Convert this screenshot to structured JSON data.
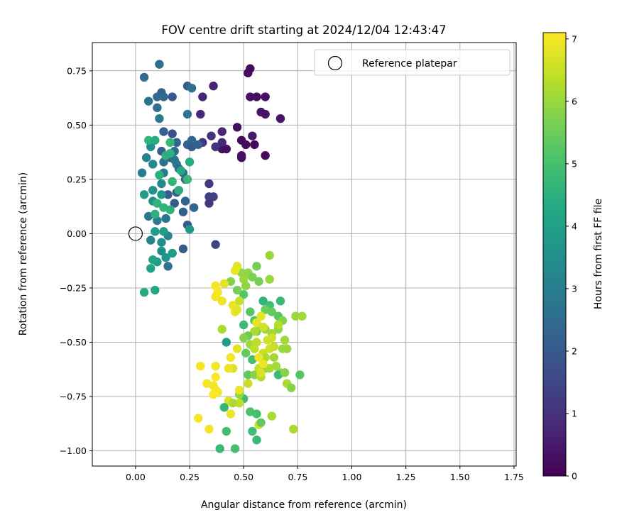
{
  "chart_data": {
    "type": "scatter",
    "title": "FOV centre drift starting at 2024/12/04 12:43:47",
    "xlabel": "Angular distance from reference (arcmin)",
    "ylabel": "Rotation from reference (arcmin)",
    "xlim": [
      -0.2,
      1.76
    ],
    "ylim": [
      -1.07,
      0.88
    ],
    "x_ticks": [
      "0.00",
      "0.25",
      "0.50",
      "0.75",
      "1.00",
      "1.25",
      "1.50",
      "1.75"
    ],
    "y_ticks": [
      "0.75",
      "0.50",
      "0.25",
      "0.00",
      "−0.25",
      "−0.50",
      "−0.75",
      "−1.00"
    ],
    "x_tick_values": [
      0,
      0.25,
      0.5,
      0.75,
      1.0,
      1.25,
      1.5,
      1.75
    ],
    "y_tick_values": [
      0.75,
      0.5,
      0.25,
      0,
      -0.25,
      -0.5,
      -0.75,
      -1.0
    ],
    "grid": true,
    "colormap": "viridis",
    "colorbar": {
      "label": "Hours from first FF file",
      "range": [
        0,
        7.1
      ],
      "ticks": [
        "0",
        "1",
        "2",
        "3",
        "4",
        "5",
        "6",
        "7"
      ],
      "tick_values": [
        0,
        1,
        2,
        3,
        4,
        5,
        6,
        7
      ]
    },
    "legend": {
      "position": "top-right",
      "label": "Reference platepar"
    },
    "reference_point": {
      "x": 0,
      "y": 0
    },
    "series": [
      {
        "points": [
          [
            0.53,
            0.76,
            0.2
          ],
          [
            0.52,
            0.74,
            0.2
          ],
          [
            0.53,
            0.63,
            0.3
          ],
          [
            0.6,
            0.63,
            0.3
          ],
          [
            0.58,
            0.56,
            0.4
          ],
          [
            0.6,
            0.55,
            0.4
          ],
          [
            0.67,
            0.53,
            0.4
          ],
          [
            0.54,
            0.45,
            0.5
          ],
          [
            0.49,
            0.43,
            0.2
          ],
          [
            0.51,
            0.41,
            0.2
          ],
          [
            0.47,
            0.49,
            0.3
          ],
          [
            0.4,
            0.39,
            0.3
          ],
          [
            0.42,
            0.39,
            0.3
          ],
          [
            0.55,
            0.41,
            0.2
          ],
          [
            0.6,
            0.36,
            0.2
          ],
          [
            0.49,
            0.35,
            0.2
          ],
          [
            0.49,
            0.36,
            0.3
          ],
          [
            0.56,
            0.63,
            0.3
          ],
          [
            0.36,
            0.68,
            0.7
          ],
          [
            0.31,
            0.63,
            0.8
          ],
          [
            0.3,
            0.55,
            0.8
          ],
          [
            0.4,
            0.47,
            0.8
          ],
          [
            0.4,
            0.42,
            0.8
          ],
          [
            0.35,
            0.45,
            1.0
          ],
          [
            0.31,
            0.42,
            1.1
          ],
          [
            0.37,
            0.4,
            1.0
          ],
          [
            0.34,
            0.23,
            1.2
          ],
          [
            0.34,
            0.17,
            1.3
          ],
          [
            0.36,
            0.17,
            1.4
          ],
          [
            0.34,
            0.14,
            1.1
          ],
          [
            0.37,
            -0.05,
            1.4
          ],
          [
            0.04,
            0.72,
            2.5
          ],
          [
            0.11,
            0.78,
            2.6
          ],
          [
            0.06,
            0.61,
            2.7
          ],
          [
            0.1,
            0.63,
            2.5
          ],
          [
            0.12,
            0.65,
            2.2
          ],
          [
            0.13,
            0.63,
            2.4
          ],
          [
            0.17,
            0.63,
            2.0
          ],
          [
            0.24,
            0.68,
            2.1
          ],
          [
            0.26,
            0.67,
            2.6
          ],
          [
            0.11,
            0.53,
            2.9
          ],
          [
            0.24,
            0.55,
            2.7
          ],
          [
            0.1,
            0.58,
            2.6
          ],
          [
            0.13,
            0.47,
            2.2
          ],
          [
            0.17,
            0.46,
            1.8
          ],
          [
            0.12,
            0.38,
            2.1
          ],
          [
            0.16,
            0.35,
            2.2
          ],
          [
            0.18,
            0.38,
            2.5
          ],
          [
            0.19,
            0.42,
            2.3
          ],
          [
            0.24,
            0.41,
            2.3
          ],
          [
            0.26,
            0.43,
            2.3
          ],
          [
            0.26,
            0.4,
            2.0
          ],
          [
            0.29,
            0.41,
            2.2
          ],
          [
            0.13,
            0.33,
            2.6
          ],
          [
            0.18,
            0.34,
            2.7
          ],
          [
            0.19,
            0.32,
            2.8
          ],
          [
            0.2,
            0.3,
            2.5
          ],
          [
            0.22,
            0.28,
            2.4
          ],
          [
            0.23,
            0.25,
            2.3
          ],
          [
            0.19,
            0.19,
            2.2
          ],
          [
            0.15,
            0.18,
            2.1
          ],
          [
            0.18,
            0.14,
            2.0
          ],
          [
            0.23,
            0.15,
            2.3
          ],
          [
            0.22,
            0.1,
            2.1
          ],
          [
            0.27,
            0.12,
            2.4
          ],
          [
            0.12,
            0.23,
            3.3
          ],
          [
            0.13,
            0.28,
            2.9
          ],
          [
            0.08,
            0.32,
            3.3
          ],
          [
            0.03,
            0.28,
            3.0
          ],
          [
            0.05,
            0.35,
            3.2
          ],
          [
            0.07,
            0.4,
            3.5
          ],
          [
            0.06,
            0.08,
            2.8
          ],
          [
            0.1,
            0.06,
            3.0
          ],
          [
            0.14,
            0.07,
            2.7
          ],
          [
            0.08,
            0.15,
            3.5
          ],
          [
            0.08,
            0.2,
            3.6
          ],
          [
            0.12,
            0.18,
            3.7
          ],
          [
            0.04,
            0.18,
            3.9
          ],
          [
            0.24,
            0.04,
            2.0
          ],
          [
            0.25,
            0.02,
            3.8
          ],
          [
            0.15,
            -0.01,
            3.3
          ],
          [
            0.07,
            -0.03,
            3.1
          ],
          [
            0.12,
            -0.04,
            3.4
          ],
          [
            0.13,
            0.01,
            3.9
          ],
          [
            0.09,
            0.01,
            3.9
          ],
          [
            0.12,
            -0.08,
            3.4
          ],
          [
            0.1,
            -0.13,
            3.9
          ],
          [
            0.14,
            -0.11,
            3.7
          ],
          [
            0.08,
            -0.12,
            4.1
          ],
          [
            0.15,
            -0.15,
            2.6
          ],
          [
            0.22,
            -0.07,
            2.1
          ],
          [
            0.17,
            -0.09,
            3.9
          ],
          [
            0.07,
            -0.16,
            4.1
          ],
          [
            0.09,
            -0.26,
            4.2
          ],
          [
            0.04,
            -0.27,
            4.3
          ],
          [
            0.06,
            0.43,
            4.6
          ],
          [
            0.09,
            0.43,
            4.4
          ],
          [
            0.16,
            0.42,
            4.7
          ],
          [
            0.14,
            0.36,
            4.5
          ],
          [
            0.16,
            0.37,
            4.5
          ],
          [
            0.24,
            0.25,
            4.7
          ],
          [
            0.25,
            0.33,
            4.4
          ],
          [
            0.1,
            0.14,
            4.6
          ],
          [
            0.13,
            0.12,
            4.6
          ],
          [
            0.16,
            0.11,
            4.5
          ],
          [
            0.17,
            0.24,
            4.6
          ],
          [
            0.11,
            0.27,
            4.5
          ],
          [
            0.21,
            0.29,
            4.3
          ],
          [
            0.2,
            0.2,
            4.4
          ],
          [
            0.09,
            0.09,
            4.5
          ],
          [
            0.49,
            -0.18,
            5.9
          ],
          [
            0.52,
            -0.18,
            5.9
          ],
          [
            0.5,
            -0.21,
            6.0
          ],
          [
            0.51,
            -0.24,
            5.9
          ],
          [
            0.54,
            -0.2,
            5.7
          ],
          [
            0.56,
            -0.15,
            5.6
          ],
          [
            0.62,
            -0.1,
            6.0
          ],
          [
            0.62,
            -0.21,
            6.0
          ],
          [
            0.57,
            -0.22,
            5.6
          ],
          [
            0.5,
            -0.28,
            5.2
          ],
          [
            0.47,
            -0.26,
            5.6
          ],
          [
            0.44,
            -0.22,
            5.8
          ],
          [
            0.53,
            -0.36,
            5.2
          ],
          [
            0.59,
            -0.31,
            4.6
          ],
          [
            0.62,
            -0.33,
            4.9
          ],
          [
            0.67,
            -0.31,
            4.8
          ],
          [
            0.55,
            -0.4,
            5.2
          ],
          [
            0.56,
            -0.45,
            5.6
          ],
          [
            0.6,
            -0.35,
            5.5
          ],
          [
            0.63,
            -0.36,
            5.4
          ],
          [
            0.66,
            -0.38,
            5.2
          ],
          [
            0.68,
            -0.4,
            5.8
          ],
          [
            0.66,
            -0.44,
            5.9
          ],
          [
            0.63,
            -0.46,
            6.1
          ],
          [
            0.6,
            -0.44,
            6.0
          ],
          [
            0.58,
            -0.43,
            5.8
          ],
          [
            0.55,
            -0.45,
            6.2
          ],
          [
            0.5,
            -0.42,
            4.8
          ],
          [
            0.52,
            -0.47,
            5.5
          ],
          [
            0.53,
            -0.51,
            6.1
          ],
          [
            0.55,
            -0.53,
            6.4
          ],
          [
            0.56,
            -0.5,
            6.4
          ],
          [
            0.59,
            -0.55,
            6.5
          ],
          [
            0.6,
            -0.57,
            6.2
          ],
          [
            0.64,
            -0.57,
            6.1
          ],
          [
            0.68,
            -0.53,
            6.0
          ],
          [
            0.69,
            -0.49,
            6.1
          ],
          [
            0.7,
            -0.53,
            6.0
          ],
          [
            0.74,
            -0.38,
            6.0
          ],
          [
            0.77,
            -0.38,
            6.1
          ],
          [
            0.5,
            -0.48,
            5.8
          ],
          [
            0.51,
            -0.55,
            5.4
          ],
          [
            0.54,
            -0.58,
            5.0
          ],
          [
            0.52,
            -0.65,
            5.3
          ],
          [
            0.55,
            -0.65,
            5.8
          ],
          [
            0.57,
            -0.62,
            6.4
          ],
          [
            0.58,
            -0.66,
            6.3
          ],
          [
            0.6,
            -0.62,
            5.7
          ],
          [
            0.62,
            -0.62,
            6.2
          ],
          [
            0.65,
            -0.61,
            6.1
          ],
          [
            0.67,
            -0.64,
            6.0
          ],
          [
            0.66,
            -0.65,
            4.8
          ],
          [
            0.69,
            -0.64,
            5.8
          ],
          [
            0.7,
            -0.69,
            6.2
          ],
          [
            0.72,
            -0.71,
            5.8
          ],
          [
            0.76,
            -0.65,
            5.2
          ],
          [
            0.45,
            -0.62,
            6.7
          ],
          [
            0.43,
            -0.62,
            6.9
          ],
          [
            0.44,
            -0.57,
            7.0
          ],
          [
            0.47,
            -0.53,
            6.8
          ],
          [
            0.42,
            -0.5,
            3.9
          ],
          [
            0.4,
            -0.44,
            6.2
          ],
          [
            0.5,
            -0.76,
            4.9
          ],
          [
            0.48,
            -0.78,
            6.4
          ],
          [
            0.48,
            -0.74,
            5.9
          ],
          [
            0.52,
            -0.69,
            6.5
          ],
          [
            0.43,
            -0.77,
            6.7
          ],
          [
            0.41,
            -0.8,
            4.7
          ],
          [
            0.44,
            -0.83,
            6.9
          ],
          [
            0.45,
            -0.78,
            6.2
          ],
          [
            0.48,
            -0.72,
            6.9
          ],
          [
            0.53,
            -0.82,
            5.1
          ],
          [
            0.56,
            -0.83,
            5.0
          ],
          [
            0.54,
            -0.91,
            4.9
          ],
          [
            0.57,
            -0.88,
            6.6
          ],
          [
            0.58,
            -0.87,
            5.4
          ],
          [
            0.56,
            -0.95,
            4.8
          ],
          [
            0.42,
            -0.91,
            4.9
          ],
          [
            0.39,
            -0.99,
            4.8
          ],
          [
            0.46,
            -0.99,
            5.0
          ],
          [
            0.63,
            -0.84,
            6.2
          ],
          [
            0.73,
            -0.9,
            6.2
          ],
          [
            0.3,
            -0.61,
            7.0
          ],
          [
            0.37,
            -0.61,
            7.0
          ],
          [
            0.37,
            -0.66,
            7.1
          ],
          [
            0.33,
            -0.69,
            7.0
          ],
          [
            0.36,
            -0.7,
            7.0
          ],
          [
            0.37,
            -0.72,
            7.0
          ],
          [
            0.38,
            -0.73,
            7.0
          ],
          [
            0.36,
            -0.74,
            7.1
          ],
          [
            0.29,
            -0.85,
            7.0
          ],
          [
            0.34,
            -0.9,
            7.0
          ],
          [
            0.37,
            -0.24,
            7.0
          ],
          [
            0.38,
            -0.27,
            7.0
          ],
          [
            0.37,
            -0.29,
            7.0
          ],
          [
            0.4,
            -0.31,
            6.9
          ],
          [
            0.45,
            -0.33,
            6.9
          ],
          [
            0.46,
            -0.36,
            6.9
          ],
          [
            0.47,
            -0.35,
            6.8
          ],
          [
            0.47,
            -0.15,
            6.8
          ],
          [
            0.46,
            -0.17,
            6.9
          ],
          [
            0.41,
            -0.23,
            6.8
          ],
          [
            0.48,
            -0.31,
            6.5
          ],
          [
            0.58,
            -0.38,
            6.8
          ],
          [
            0.56,
            -0.41,
            6.8
          ],
          [
            0.59,
            -0.43,
            6.6
          ],
          [
            0.57,
            -0.57,
            6.9
          ],
          [
            0.59,
            -0.6,
            6.9
          ],
          [
            0.58,
            -0.64,
            6.7
          ],
          [
            0.61,
            -0.49,
            6.6
          ],
          [
            0.63,
            -0.48,
            6.6
          ],
          [
            0.66,
            -0.42,
            6.3
          ],
          [
            0.62,
            -0.53,
            6.6
          ],
          [
            0.64,
            -0.52,
            6.5
          ]
        ]
      }
    ]
  }
}
